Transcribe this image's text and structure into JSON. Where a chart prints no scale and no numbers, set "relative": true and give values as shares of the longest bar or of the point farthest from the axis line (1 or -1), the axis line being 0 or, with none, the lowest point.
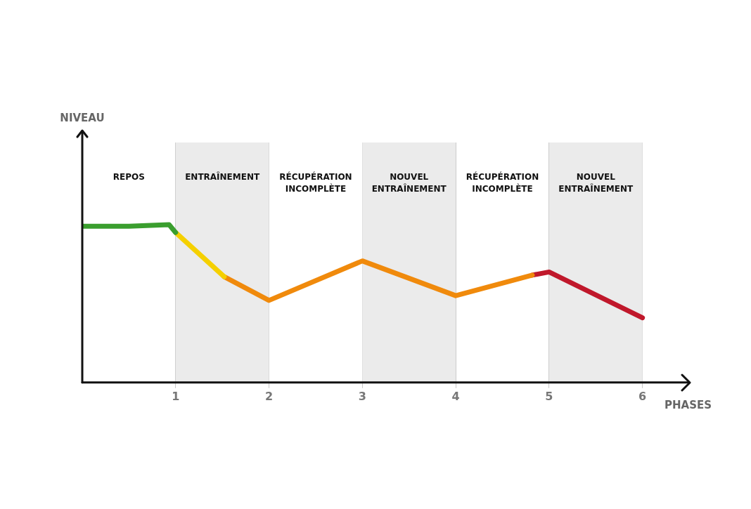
{
  "chart_data": {
    "type": "line",
    "relative": true,
    "xlabel": "PHASES",
    "xlim": [
      0,
      6.5
    ],
    "xticks": [
      1,
      2,
      3,
      4,
      5,
      6
    ],
    "grid": "x",
    "legend": false,
    "marker": "none",
    "line_style": "solid",
    "bands": [
      {
        "axis": "x",
        "from": 1,
        "to": 2,
        "label": "ENTRAÎNEMENT",
        "color": "#ebebeb"
      },
      {
        "axis": "x",
        "from": 3,
        "to": 4,
        "label": "NOUVEL\nENTRAÎNEMENT",
        "color": "#ebebeb"
      },
      {
        "axis": "x",
        "from": 5,
        "to": 6,
        "label": "NOUVEL\nENTRAÎNEMENT",
        "color": "#ebebeb"
      }
    ],
    "annotations": [
      "REPOS",
      "RÉCUPÉRATION\nINCOMPLÈTE",
      "RÉCUPÉRATION\nINCOMPLÈTE",
      "NIVEAU"
    ],
    "series": [
      {
        "color": "#3a9e2e",
        "x": [
          0,
          0.5,
          0.93,
          1
        ],
        "values": [
          0.99,
          0.99,
          1.0,
          0.95
        ]
      },
      {
        "color": "#f5d000",
        "x": [
          1,
          1.52
        ],
        "values": [
          0.95,
          0.67
        ]
      },
      {
        "color": "#f08a0c",
        "x": [
          1.52,
          2,
          3,
          4,
          4.82
        ],
        "values": [
          0.67,
          0.52,
          0.77,
          0.55,
          0.68
        ]
      },
      {
        "color": "#c0182b",
        "x": [
          4.82,
          5,
          6
        ],
        "values": [
          0.68,
          0.7,
          0.41
        ]
      }
    ]
  }
}
